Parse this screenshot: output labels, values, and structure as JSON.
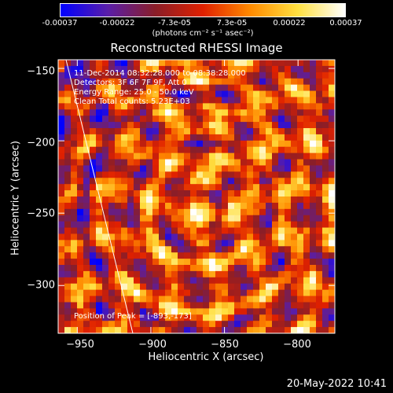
{
  "colorbar": {
    "tick_labels": [
      "-0.00037",
      "-0.00022",
      "-7.3e-05",
      "7.3e-05",
      "0.00022",
      "0.00037"
    ],
    "tick_values": [
      -0.00037,
      -0.00022,
      -7.3e-05,
      7.3e-05,
      0.00022,
      0.00037
    ],
    "range": [
      -0.00037,
      0.00037
    ],
    "unit_label": "(photons cm⁻² s⁻¹ asec⁻²)"
  },
  "chart_data": {
    "type": "heatmap",
    "title": "Reconstructed RHESSI Image",
    "xlabel": "Heliocentric X (arcsec)",
    "ylabel": "Heliocentric Y (arcsec)",
    "xlim": [
      -963,
      -775
    ],
    "ylim": [
      -333,
      -144
    ],
    "xticks": [
      -950,
      -900,
      -850,
      -800
    ],
    "yticks": [
      -150,
      -200,
      -250,
      -300
    ],
    "xtick_labels": [
      "−950",
      "−900",
      "−850",
      "−800"
    ],
    "ytick_labels": [
      "−150",
      "−200",
      "−250",
      "−300"
    ],
    "colormap": [
      "#0000ff",
      "#5a1ea8",
      "#8a1e28",
      "#e02000",
      "#ff8a00",
      "#ffe040",
      "#ffffff"
    ],
    "peak_position": [
      -893,
      -173
    ]
  },
  "annotations": {
    "line1": "11-Dec-2014 08:32:28.000 to 08:38:28.000",
    "line2": "Detectors: 3F 6F 7F 9F, Att 0",
    "line3": "Energy Range: 25.0 - 50.0 keV",
    "line4": "Clean    Total counts: 5.23E+03",
    "peak": "Position of Peak = [-893,-173]"
  },
  "timestamp": "20-May-2022 10:41"
}
